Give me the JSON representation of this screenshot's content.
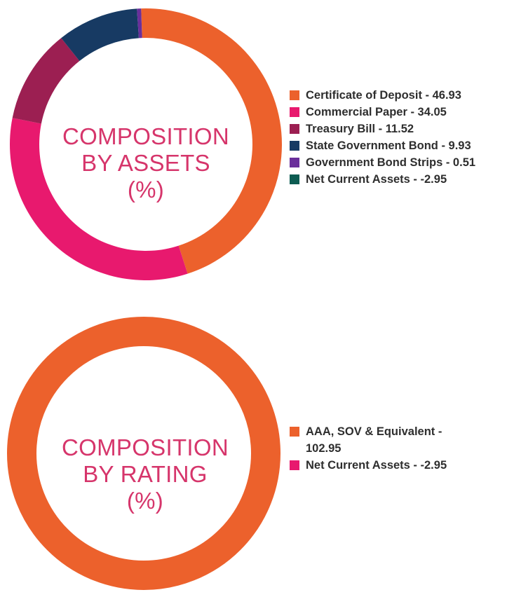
{
  "chart_data": [
    {
      "type": "donut",
      "center_title": [
        "COMPOSITION",
        "BY ASSETS",
        "(%)"
      ],
      "legend_position": "right",
      "start_angle_deg": -2,
      "slices": [
        {
          "label": "Certificate of Deposit - 46.93",
          "name": "Certificate of Deposit",
          "value": 46.93,
          "color": "#ec612c"
        },
        {
          "label": "Commercial Paper - 34.05",
          "name": "Commercial Paper",
          "value": 34.05,
          "color": "#e8196e"
        },
        {
          "label": "Treasury Bill - 11.52",
          "name": "Treasury Bill",
          "value": 11.52,
          "color": "#9c1f52"
        },
        {
          "label": "State Government Bond - 9.93",
          "name": "State Government Bond",
          "value": 9.93,
          "color": "#173a63"
        },
        {
          "label": "Government Bond Strips - 0.51",
          "name": "Government Bond Strips",
          "value": 0.51,
          "color": "#6a2f9b"
        },
        {
          "label": "Net Current Assets - -2.95",
          "name": "Net Current Assets",
          "value": -2.95,
          "color": "#0d5c52"
        }
      ]
    },
    {
      "type": "donut",
      "center_title": [
        "COMPOSITION",
        "BY RATING",
        "(%)"
      ],
      "legend_position": "right",
      "start_angle_deg": 0,
      "slices": [
        {
          "label": "AAA, SOV & Equivalent - 102.95",
          "name": "AAA, SOV & Equivalent",
          "value": 102.95,
          "color": "#ec612c"
        },
        {
          "label": "Net Current Assets - -2.95",
          "name": "Net Current Assets",
          "value": -2.95,
          "color": "#e8196e"
        }
      ]
    }
  ]
}
